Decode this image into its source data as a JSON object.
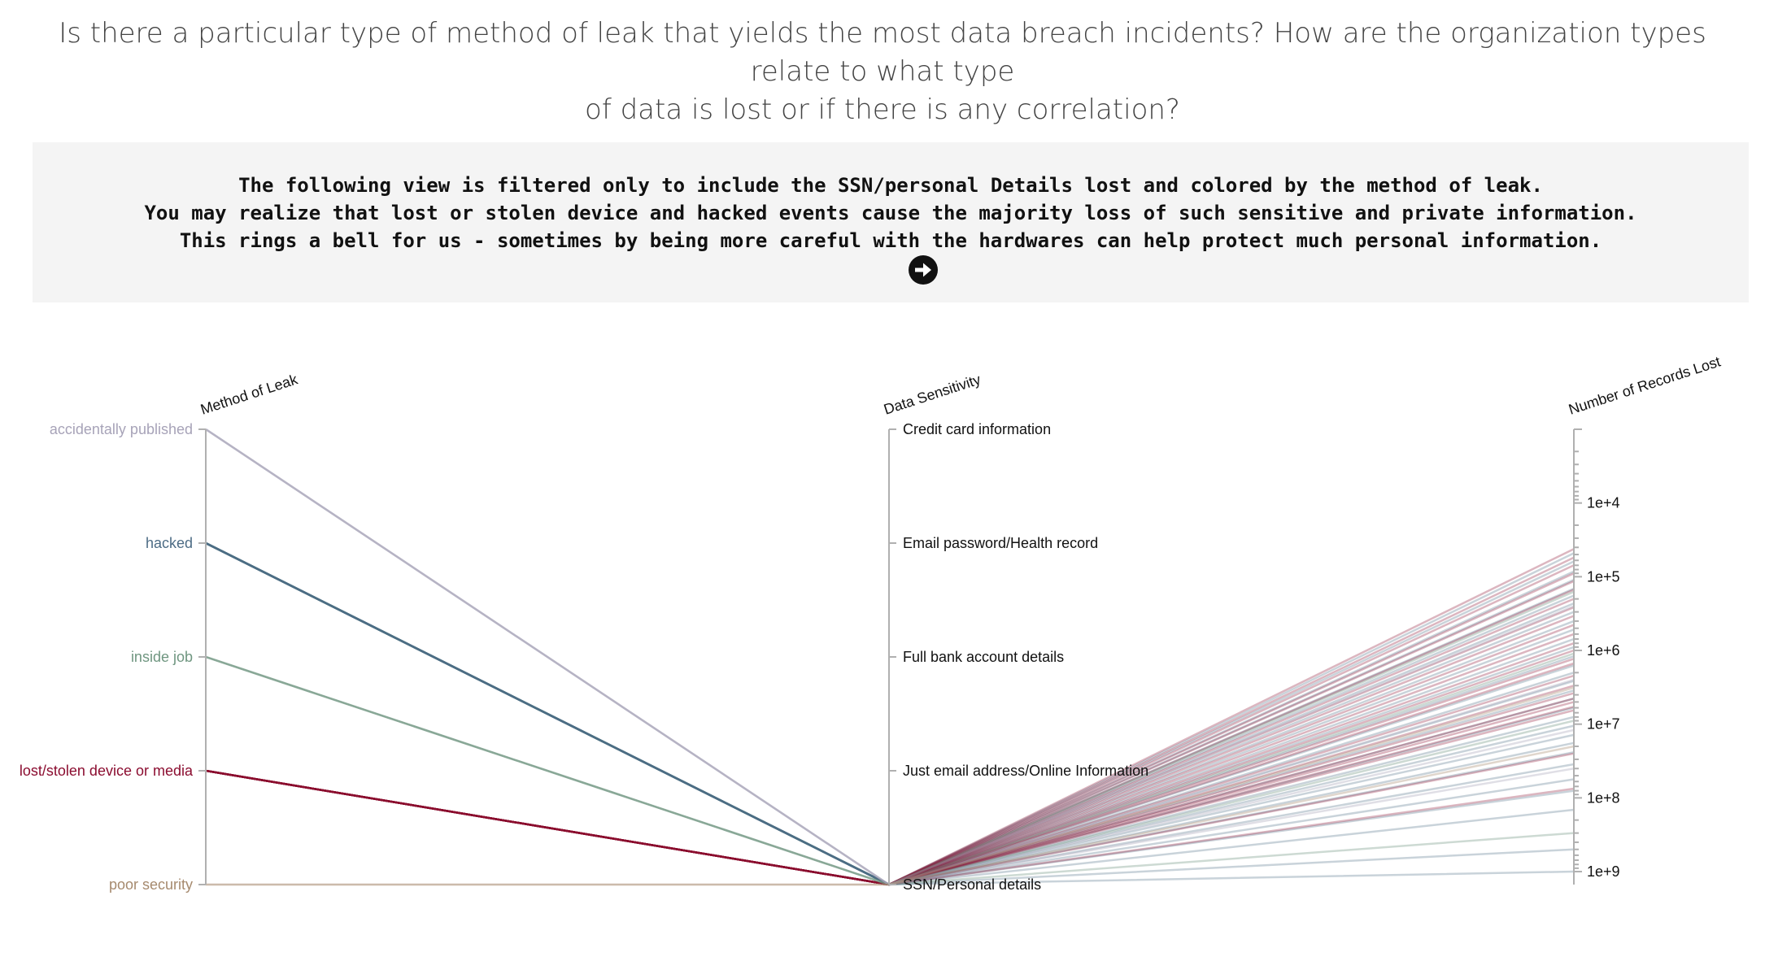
{
  "header": {
    "question_line_1": "Is there a particular type of method of leak that yields the most data breach incidents? How are the organization types relate to what type",
    "question_line_2": "of data is lost or if there is any correlation?"
  },
  "story": {
    "line_1": "The following view is filtered only to include the SSN/personal Details lost and colored by the method of leak.",
    "line_2": "You may realize that lost or stolen device and hacked events cause the majority loss of such sensitive and private information.",
    "line_3": "This rings a bell for us - sometimes by being more careful with the hardwares can help protect much personal information.",
    "next_icon": "arrow-circle-right-icon"
  },
  "chart_data": {
    "type": "parallel-coordinates",
    "filter": "SSN/Personal details",
    "axes": [
      {
        "name": "Method of Leak",
        "kind": "categorical",
        "categories": [
          "accidentally published",
          "hacked",
          "inside job",
          "lost/stolen device or media",
          "poor security"
        ]
      },
      {
        "name": "Data Sensitivity",
        "kind": "categorical",
        "categories": [
          "Credit card information",
          "Email password/Health record",
          "Full bank account details",
          "Just email address/Online Information",
          "SSN/Personal details"
        ]
      },
      {
        "name": "Number of Records Lost",
        "kind": "log",
        "range": [
          1000,
          1500000000
        ],
        "reversed": true,
        "ticks": [
          "1e+4",
          "1e+5",
          "1e+6",
          "1e+7",
          "1e+8",
          "1e+9"
        ],
        "tick_values": [
          10000,
          100000,
          1000000,
          10000000,
          100000000,
          1000000000
        ]
      }
    ],
    "method_colors": {
      "accidentally published": "#a7a3b8",
      "hacked": "#4d6c85",
      "inside job": "#6f9680",
      "lost/stolen device or media": "#8b0d30",
      "poor security": "#a68a6e"
    },
    "records": [
      {
        "method": "hacked",
        "sensitivity": "SSN/Personal details",
        "records": 48000
      },
      {
        "method": "hacked",
        "sensitivity": "SSN/Personal details",
        "records": 62000
      },
      {
        "method": "hacked",
        "sensitivity": "SSN/Personal details",
        "records": 85000
      },
      {
        "method": "hacked",
        "sensitivity": "SSN/Personal details",
        "records": 110000
      },
      {
        "method": "hacked",
        "sensitivity": "SSN/Personal details",
        "records": 145000
      },
      {
        "method": "hacked",
        "sensitivity": "SSN/Personal details",
        "records": 180000
      },
      {
        "method": "hacked",
        "sensitivity": "SSN/Personal details",
        "records": 230000
      },
      {
        "method": "hacked",
        "sensitivity": "SSN/Personal details",
        "records": 300000
      },
      {
        "method": "hacked",
        "sensitivity": "SSN/Personal details",
        "records": 400000
      },
      {
        "method": "hacked",
        "sensitivity": "SSN/Personal details",
        "records": 520000
      },
      {
        "method": "hacked",
        "sensitivity": "SSN/Personal details",
        "records": 700000
      },
      {
        "method": "hacked",
        "sensitivity": "SSN/Personal details",
        "records": 900000
      },
      {
        "method": "hacked",
        "sensitivity": "SSN/Personal details",
        "records": 1200000
      },
      {
        "method": "hacked",
        "sensitivity": "SSN/Personal details",
        "records": 1600000
      },
      {
        "method": "hacked",
        "sensitivity": "SSN/Personal details",
        "records": 2000000
      },
      {
        "method": "hacked",
        "sensitivity": "SSN/Personal details",
        "records": 2600000
      },
      {
        "method": "hacked",
        "sensitivity": "SSN/Personal details",
        "records": 3500000
      },
      {
        "method": "hacked",
        "sensitivity": "SSN/Personal details",
        "records": 4500000
      },
      {
        "method": "hacked",
        "sensitivity": "SSN/Personal details",
        "records": 6000000
      },
      {
        "method": "hacked",
        "sensitivity": "SSN/Personal details",
        "records": 8000000
      },
      {
        "method": "hacked",
        "sensitivity": "SSN/Personal details",
        "records": 10500000
      },
      {
        "method": "hacked",
        "sensitivity": "SSN/Personal details",
        "records": 14000000
      },
      {
        "method": "hacked",
        "sensitivity": "SSN/Personal details",
        "records": 18000000
      },
      {
        "method": "hacked",
        "sensitivity": "SSN/Personal details",
        "records": 24000000
      },
      {
        "method": "hacked",
        "sensitivity": "SSN/Personal details",
        "records": 35000000
      },
      {
        "method": "hacked",
        "sensitivity": "SSN/Personal details",
        "records": 56000000
      },
      {
        "method": "hacked",
        "sensitivity": "SSN/Personal details",
        "records": 80000000
      },
      {
        "method": "hacked",
        "sensitivity": "SSN/Personal details",
        "records": 145000000
      },
      {
        "method": "hacked",
        "sensitivity": "SSN/Personal details",
        "records": 500000000
      },
      {
        "method": "hacked",
        "sensitivity": "SSN/Personal details",
        "records": 1000000000
      },
      {
        "method": "lost/stolen device or media",
        "sensitivity": "SSN/Personal details",
        "records": 42000
      },
      {
        "method": "lost/stolen device or media",
        "sensitivity": "SSN/Personal details",
        "records": 55000
      },
      {
        "method": "lost/stolen device or media",
        "sensitivity": "SSN/Personal details",
        "records": 70000
      },
      {
        "method": "lost/stolen device or media",
        "sensitivity": "SSN/Personal details",
        "records": 90000
      },
      {
        "method": "lost/stolen device or media",
        "sensitivity": "SSN/Personal details",
        "records": 115000
      },
      {
        "method": "lost/stolen device or media",
        "sensitivity": "SSN/Personal details",
        "records": 150000
      },
      {
        "method": "lost/stolen device or media",
        "sensitivity": "SSN/Personal details",
        "records": 200000
      },
      {
        "method": "lost/stolen device or media",
        "sensitivity": "SSN/Personal details",
        "records": 260000
      },
      {
        "method": "lost/stolen device or media",
        "sensitivity": "SSN/Personal details",
        "records": 340000
      },
      {
        "method": "lost/stolen device or media",
        "sensitivity": "SSN/Personal details",
        "records": 450000
      },
      {
        "method": "lost/stolen device or media",
        "sensitivity": "SSN/Personal details",
        "records": 600000
      },
      {
        "method": "lost/stolen device or media",
        "sensitivity": "SSN/Personal details",
        "records": 800000
      },
      {
        "method": "lost/stolen device or media",
        "sensitivity": "SSN/Personal details",
        "records": 1000000
      },
      {
        "method": "lost/stolen device or media",
        "sensitivity": "SSN/Personal details",
        "records": 1300000
      },
      {
        "method": "lost/stolen device or media",
        "sensitivity": "SSN/Personal details",
        "records": 1500000
      },
      {
        "method": "lost/stolen device or media",
        "sensitivity": "SSN/Personal details",
        "records": 2200000
      },
      {
        "method": "lost/stolen device or media",
        "sensitivity": "SSN/Personal details",
        "records": 3000000
      },
      {
        "method": "lost/stolen device or media",
        "sensitivity": "SSN/Personal details",
        "records": 3800000
      },
      {
        "method": "lost/stolen device or media",
        "sensitivity": "SSN/Personal details",
        "records": 4500000
      },
      {
        "method": "lost/stolen device or media",
        "sensitivity": "SSN/Personal details",
        "records": 5000000
      },
      {
        "method": "lost/stolen device or media",
        "sensitivity": "SSN/Personal details",
        "records": 5800000
      },
      {
        "method": "lost/stolen device or media",
        "sensitivity": "SSN/Personal details",
        "records": 6500000
      },
      {
        "method": "lost/stolen device or media",
        "sensitivity": "SSN/Personal details",
        "records": 25000000
      },
      {
        "method": "lost/stolen device or media",
        "sensitivity": "SSN/Personal details",
        "records": 75000000
      },
      {
        "method": "inside job",
        "sensitivity": "SSN/Personal details",
        "records": 160000
      },
      {
        "method": "inside job",
        "sensitivity": "SSN/Personal details",
        "records": 1100000
      },
      {
        "method": "inside job",
        "sensitivity": "SSN/Personal details",
        "records": 9000000
      },
      {
        "method": "inside job",
        "sensitivity": "SSN/Personal details",
        "records": 300000000
      },
      {
        "method": "accidentally published",
        "sensitivity": "SSN/Personal details",
        "records": 250000
      },
      {
        "method": "accidentally published",
        "sensitivity": "SSN/Personal details",
        "records": 2500000
      },
      {
        "method": "accidentally published",
        "sensitivity": "SSN/Personal details",
        "records": 12000000
      },
      {
        "method": "accidentally published",
        "sensitivity": "SSN/Personal details",
        "records": 40000000
      },
      {
        "method": "poor security",
        "sensitivity": "SSN/Personal details",
        "records": 3200000
      },
      {
        "method": "poor security",
        "sensitivity": "SSN/Personal details",
        "records": 20000000
      }
    ]
  }
}
